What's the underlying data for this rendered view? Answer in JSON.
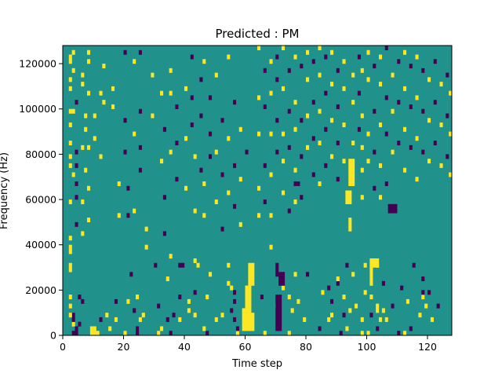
{
  "chart_data": {
    "type": "heatmap",
    "title": "Predicted : PM",
    "xlabel": "Time step",
    "ylabel": "Frequency (Hz)",
    "xlim": [
      0,
      128
    ],
    "ylim": [
      0,
      128000
    ],
    "x_ticks": [
      0,
      20,
      40,
      60,
      80,
      100,
      120
    ],
    "y_ticks": [
      0,
      20000,
      40000,
      60000,
      80000,
      100000,
      120000
    ],
    "y_tick_labels": [
      "0",
      "20000",
      "40000",
      "60000",
      "80000",
      "100000",
      "120000"
    ],
    "n_time_steps": 128,
    "n_freq_bins": 64,
    "freq_bin_width_hz": 2000,
    "background_value": 0,
    "colormap": {
      "-1": "#440154",
      "0": "#21918c",
      "1": "#fde725"
    },
    "cells": [
      {
        "t": 3,
        "f": 0,
        "v": -1
      },
      {
        "t": 4,
        "f": 0,
        "v": -1
      },
      {
        "t": 9,
        "f": 0,
        "v": 1
      },
      {
        "t": 10,
        "f": 0,
        "v": 1
      },
      {
        "t": 9,
        "f": 1,
        "v": 1
      },
      {
        "t": 10,
        "f": 1,
        "v": 1
      },
      {
        "t": 4,
        "f": 1,
        "v": -1
      },
      {
        "t": 11,
        "f": 0,
        "v": 1
      },
      {
        "t": 20,
        "f": 0,
        "v": 1
      },
      {
        "t": 24,
        "f": 0,
        "v": -1
      },
      {
        "t": 31,
        "f": 0,
        "v": 1
      },
      {
        "t": 24,
        "f": 1,
        "v": -1
      },
      {
        "t": 15,
        "f": 1,
        "v": 1
      },
      {
        "t": 35,
        "f": 0,
        "v": -1
      },
      {
        "t": 47,
        "f": 0,
        "v": -1
      },
      {
        "t": 57,
        "f": 0,
        "v": 1
      },
      {
        "t": 66,
        "f": 0,
        "v": 1
      },
      {
        "t": 74,
        "f": 0,
        "v": 1
      },
      {
        "t": 91,
        "f": 0,
        "v": -1
      },
      {
        "t": 98,
        "f": 0,
        "v": 1
      },
      {
        "t": 100,
        "f": 0,
        "v": 1
      },
      {
        "t": 110,
        "f": 0,
        "v": -1
      },
      {
        "t": 112,
        "f": 0,
        "v": 1
      },
      {
        "t": 3,
        "f": 2,
        "v": 1
      },
      {
        "t": 5,
        "f": 2,
        "v": -1
      },
      {
        "t": 3,
        "f": 3,
        "v": -1
      },
      {
        "t": 3,
        "f": 4,
        "v": -1
      },
      {
        "t": 2,
        "f": 4,
        "v": 1
      },
      {
        "t": 32,
        "f": 1,
        "v": 1
      },
      {
        "t": 46,
        "f": 1,
        "v": 1
      },
      {
        "t": 57,
        "f": 1,
        "v": -1
      },
      {
        "t": 84,
        "f": 1,
        "v": -1
      },
      {
        "t": 93,
        "f": 1,
        "v": 1
      },
      {
        "t": 103,
        "f": 1,
        "v": -1
      },
      {
        "t": 114,
        "f": 1,
        "v": -1
      },
      {
        "t": 12,
        "f": 3,
        "v": -1
      },
      {
        "t": 17,
        "f": 3,
        "v": 1
      },
      {
        "t": 25,
        "f": 3,
        "v": 1
      },
      {
        "t": 34,
        "f": 3,
        "v": -1
      },
      {
        "t": 38,
        "f": 3,
        "v": 1
      },
      {
        "t": 50,
        "f": 3,
        "v": 1
      },
      {
        "t": 56,
        "f": 3,
        "v": -1
      },
      {
        "t": 79,
        "f": 3,
        "v": 1
      },
      {
        "t": 87,
        "f": 3,
        "v": 1
      },
      {
        "t": 98,
        "f": 3,
        "v": 1
      },
      {
        "t": 104,
        "f": 3,
        "v": 1
      },
      {
        "t": 106,
        "f": 3,
        "v": 1
      },
      {
        "t": 121,
        "f": 3,
        "v": 1
      },
      {
        "t": 14,
        "f": 4,
        "v": 1
      },
      {
        "t": 26,
        "f": 4,
        "v": 1
      },
      {
        "t": 36,
        "f": 4,
        "v": -1
      },
      {
        "t": 43,
        "f": 4,
        "v": 1
      },
      {
        "t": 52,
        "f": 4,
        "v": 1
      },
      {
        "t": 88,
        "f": 4,
        "v": 1
      },
      {
        "t": 92,
        "f": 4,
        "v": -1
      },
      {
        "t": 101,
        "f": 4,
        "v": -1
      },
      {
        "t": 117,
        "f": 4,
        "v": 1
      },
      {
        "t": 23,
        "f": 5,
        "v": -1
      },
      {
        "t": 41,
        "f": 5,
        "v": 1
      },
      {
        "t": 55,
        "f": 5,
        "v": -1
      },
      {
        "t": 59,
        "f": 5,
        "v": 1
      },
      {
        "t": 75,
        "f": 5,
        "v": 1
      },
      {
        "t": 94,
        "f": 5,
        "v": 1
      },
      {
        "t": 105,
        "f": 5,
        "v": 1
      },
      {
        "t": 31,
        "f": 6,
        "v": -1
      },
      {
        "t": 70,
        "f": 6,
        "v": 1
      },
      {
        "t": 96,
        "f": 6,
        "v": 1
      },
      {
        "t": 108,
        "f": 6,
        "v": -1
      },
      {
        "t": 119,
        "f": 6,
        "v": 1
      },
      {
        "t": 123,
        "f": 6,
        "v": -1
      },
      {
        "t": 6,
        "f": 7,
        "v": -1
      },
      {
        "t": 17,
        "f": 7,
        "v": -1
      },
      {
        "t": 21,
        "f": 7,
        "v": 1
      },
      {
        "t": 41,
        "f": 7,
        "v": 1
      },
      {
        "t": 56,
        "f": 7,
        "v": -1
      },
      {
        "t": 77,
        "f": 7,
        "v": 1
      },
      {
        "t": 88,
        "f": 7,
        "v": -1
      },
      {
        "t": 113,
        "f": 7,
        "v": 1
      },
      {
        "t": 5,
        "f": 8,
        "v": -1
      },
      {
        "t": 24,
        "f": 8,
        "v": 1
      },
      {
        "t": 38,
        "f": 8,
        "v": -1
      },
      {
        "t": 47,
        "f": 8,
        "v": 1
      },
      {
        "t": 65,
        "f": 8,
        "v": -1
      },
      {
        "t": 74,
        "f": 8,
        "v": 1
      },
      {
        "t": 92,
        "f": 8,
        "v": 1
      },
      {
        "t": 101,
        "f": 8,
        "v": 1
      },
      {
        "t": 118,
        "f": 8,
        "v": 1
      },
      {
        "t": 43,
        "f": 9,
        "v": -1
      },
      {
        "t": 56,
        "f": 9,
        "v": -1
      },
      {
        "t": 60,
        "f": 9,
        "v": 1
      },
      {
        "t": 85,
        "f": 9,
        "v": 1
      },
      {
        "t": 99,
        "f": 9,
        "v": 1
      },
      {
        "t": 118,
        "f": 9,
        "v": -1
      },
      {
        "t": 120,
        "f": 9,
        "v": -1
      },
      {
        "t": 55,
        "f": 10,
        "v": 1
      },
      {
        "t": 60,
        "f": 10,
        "v": 1
      },
      {
        "t": 72,
        "f": 10,
        "v": 1
      },
      {
        "t": 87,
        "f": 10,
        "v": -1
      },
      {
        "t": 111,
        "f": 10,
        "v": -1
      },
      {
        "t": 54,
        "f": 11,
        "v": 1
      },
      {
        "t": 90,
        "f": 11,
        "v": -1
      },
      {
        "t": 105,
        "f": 11,
        "v": -1
      },
      {
        "t": 34,
        "f": 12,
        "v": 1
      },
      {
        "t": 90,
        "f": 12,
        "v": 1
      },
      {
        "t": 118,
        "f": 12,
        "v": -1
      },
      {
        "t": 22,
        "f": 13,
        "v": -1
      },
      {
        "t": 48,
        "f": 13,
        "v": 1
      },
      {
        "t": 76,
        "f": 13,
        "v": 1
      },
      {
        "t": 80,
        "f": 13,
        "v": -1
      },
      {
        "t": 95,
        "f": 13,
        "v": 1
      },
      {
        "t": 30,
        "f": 15,
        "v": -1
      },
      {
        "t": 44,
        "f": 15,
        "v": 1
      },
      {
        "t": 54,
        "f": 15,
        "v": 1
      },
      {
        "t": 93,
        "f": 15,
        "v": -1
      },
      {
        "t": 99,
        "f": 15,
        "v": 1
      },
      {
        "t": 103,
        "f": 15,
        "v": 1
      },
      {
        "t": 115,
        "f": 15,
        "v": -1
      }
    ],
    "rects": [
      {
        "t0": 59,
        "t1": 63,
        "f0": 1,
        "f1": 5,
        "v": 1
      },
      {
        "t0": 60,
        "t1": 62,
        "f0": 5,
        "f1": 11,
        "v": 1
      },
      {
        "t0": 61,
        "t1": 63,
        "f0": 11,
        "f1": 16,
        "v": 1
      },
      {
        "t0": 70,
        "t1": 72,
        "f0": 1,
        "f1": 9,
        "v": -1
      },
      {
        "t0": 71,
        "t1": 73,
        "f0": 11,
        "f1": 14,
        "v": -1
      },
      {
        "t0": 70,
        "t1": 71,
        "f0": 13,
        "f1": 16,
        "v": -1
      },
      {
        "t0": 94,
        "t1": 96,
        "f0": 33,
        "f1": 39,
        "v": 1
      },
      {
        "t0": 93,
        "t1": 95,
        "f0": 29,
        "f1": 32,
        "v": 1
      },
      {
        "t0": 94,
        "t1": 95,
        "f0": 23,
        "f1": 26,
        "v": 1
      },
      {
        "t0": 101,
        "t1": 104,
        "f0": 15,
        "f1": 17,
        "v": 1
      },
      {
        "t0": 101,
        "t1": 102,
        "f0": 11,
        "f1": 15,
        "v": 1
      },
      {
        "t0": 103,
        "t1": 104,
        "f0": 5,
        "f1": 7,
        "v": 1
      },
      {
        "t0": 38,
        "t1": 40,
        "f0": 15,
        "f1": 16,
        "v": -1
      },
      {
        "t0": 107,
        "t1": 110,
        "f0": 27,
        "f1": 29,
        "v": -1
      },
      {
        "t0": 76,
        "t1": 78,
        "f0": 33,
        "f1": 34,
        "v": -1
      }
    ],
    "streaks": [
      {
        "t": 2,
        "f": [
          49,
          54,
          42,
          39,
          37,
          19,
          14,
          8,
          21,
          29,
          18,
          6,
          15,
          56,
          61,
          60,
          46
        ],
        "v": 1
      },
      {
        "t": 3,
        "f": [
          58,
          49,
          62,
          35
        ],
        "v": 1
      },
      {
        "t": 4,
        "f": [
          51,
          40,
          37,
          33,
          30,
          24
        ],
        "v": -1
      },
      {
        "t": 6,
        "f": [
          57,
          55,
          41,
          29,
          22
        ],
        "v": 1
      },
      {
        "t": 7,
        "f": [
          48,
          45,
          36
        ],
        "v": 1
      },
      {
        "t": 8,
        "f": [
          62,
          60,
          53,
          41,
          32,
          25
        ],
        "v": 1
      },
      {
        "t": 10,
        "f": [
          43,
          48
        ],
        "v": 1
      },
      {
        "t": 12,
        "f": [
          39,
          53
        ],
        "v": 1
      },
      {
        "t": 13,
        "f": [
          59,
          51
        ],
        "v": 1
      },
      {
        "t": 16,
        "f": [
          54,
          50
        ],
        "v": 1
      },
      {
        "t": 18,
        "f": [
          33,
          26
        ],
        "v": 1
      },
      {
        "t": 20,
        "f": [
          62,
          47,
          40
        ],
        "v": -1
      },
      {
        "t": 21,
        "f": [
          32,
          26
        ],
        "v": -1
      },
      {
        "t": 23,
        "f": [
          60,
          44,
          27
        ],
        "v": 1
      },
      {
        "t": 25,
        "f": [
          62,
          49,
          41,
          36
        ],
        "v": -1
      },
      {
        "t": 27,
        "f": [
          23,
          19
        ],
        "v": 1
      },
      {
        "t": 29,
        "f": [
          57,
          48
        ],
        "v": 1
      },
      {
        "t": 32,
        "f": [
          53,
          38
        ],
        "v": 1
      },
      {
        "t": 33,
        "f": [
          45,
          30,
          22
        ],
        "v": -1
      },
      {
        "t": 35,
        "f": [
          58,
          53,
          40,
          17
        ],
        "v": 1
      },
      {
        "t": 37,
        "f": [
          50,
          42,
          34
        ],
        "v": -1
      },
      {
        "t": 40,
        "f": [
          54,
          43,
          32
        ],
        "v": 1
      },
      {
        "t": 42,
        "f": [
          61,
          52,
          46
        ],
        "v": -1
      },
      {
        "t": 43,
        "f": [
          39,
          27,
          16
        ],
        "v": 1
      },
      {
        "t": 45,
        "f": [
          56,
          48,
          36
        ],
        "v": -1
      },
      {
        "t": 46,
        "f": [
          60,
          33,
          26
        ],
        "v": 1
      },
      {
        "t": 48,
        "f": [
          52,
          44,
          39
        ],
        "v": -1
      },
      {
        "t": 50,
        "f": [
          57,
          40,
          29
        ],
        "v": 1
      },
      {
        "t": 52,
        "f": [
          47,
          35,
          23
        ],
        "v": -1
      },
      {
        "t": 54,
        "f": [
          61,
          43,
          31
        ],
        "v": 1
      },
      {
        "t": 56,
        "f": [
          51,
          37,
          28
        ],
        "v": -1
      },
      {
        "t": 58,
        "f": [
          45,
          34,
          24
        ],
        "v": 1
      },
      {
        "t": 60,
        "f": [
          40
        ],
        "v": -1
      },
      {
        "t": 64,
        "f": [
          63,
          52,
          44,
          32,
          26
        ],
        "v": 1
      },
      {
        "t": 66,
        "f": [
          58,
          50,
          37,
          29
        ],
        "v": -1
      },
      {
        "t": 68,
        "f": [
          60,
          53,
          44,
          35,
          26,
          19
        ],
        "v": 1
      },
      {
        "t": 70,
        "f": [
          61,
          56,
          47,
          40
        ],
        "v": -1
      },
      {
        "t": 72,
        "f": [
          63,
          54,
          44,
          38,
          31
        ],
        "v": 1
      },
      {
        "t": 74,
        "f": [
          58,
          49,
          41,
          27
        ],
        "v": -1
      },
      {
        "t": 76,
        "f": [
          61,
          51,
          45,
          36,
          29
        ],
        "v": 1
      },
      {
        "t": 78,
        "f": [
          59,
          47,
          39,
          30
        ],
        "v": -1
      },
      {
        "t": 80,
        "f": [
          62,
          56,
          48,
          41
        ],
        "v": 1
      },
      {
        "t": 82,
        "f": [
          60,
          51,
          43,
          35
        ],
        "v": -1
      },
      {
        "t": 84,
        "f": [
          63,
          57,
          49,
          42,
          33
        ],
        "v": 1
      },
      {
        "t": 86,
        "f": [
          61,
          53,
          45,
          37
        ],
        "v": -1
      },
      {
        "t": 88,
        "f": [
          62,
          55,
          47,
          39
        ],
        "v": 1
      },
      {
        "t": 90,
        "f": [
          58,
          50,
          42,
          34
        ],
        "v": -1
      },
      {
        "t": 92,
        "f": [
          60,
          54,
          46,
          38
        ],
        "v": 1
      },
      {
        "t": 95,
        "f": [
          57,
          51,
          42
        ],
        "v": 1
      },
      {
        "t": 97,
        "f": [
          61,
          53,
          45
        ],
        "v": -1
      },
      {
        "t": 98,
        "f": [
          58,
          48,
          41,
          36,
          30
        ],
        "v": 1
      },
      {
        "t": 100,
        "f": [
          62,
          56,
          44,
          38
        ],
        "v": 1
      },
      {
        "t": 102,
        "f": [
          59,
          49,
          40,
          32
        ],
        "v": -1
      },
      {
        "t": 104,
        "f": [
          61,
          55,
          46,
          37,
          30
        ],
        "v": 1
      },
      {
        "t": 106,
        "f": [
          63,
          52,
          44,
          33
        ],
        "v": -1
      },
      {
        "t": 108,
        "f": [
          57,
          49,
          40
        ],
        "v": 1
      },
      {
        "t": 110,
        "f": [
          60,
          51,
          42
        ],
        "v": -1
      },
      {
        "t": 112,
        "f": [
          62,
          54,
          45,
          36
        ],
        "v": 1
      },
      {
        "t": 114,
        "f": [
          59,
          50,
          41
        ],
        "v": -1
      },
      {
        "t": 116,
        "f": [
          61,
          52,
          43,
          34
        ],
        "v": 1
      },
      {
        "t": 118,
        "f": [
          58,
          49,
          40
        ],
        "v": -1
      },
      {
        "t": 120,
        "f": [
          56,
          47,
          38
        ],
        "v": 1
      },
      {
        "t": 122,
        "f": [
          60,
          51,
          42
        ],
        "v": -1
      },
      {
        "t": 124,
        "f": [
          55,
          46,
          37
        ],
        "v": 1
      },
      {
        "t": 126,
        "f": [
          57,
          48,
          39
        ],
        "v": -1
      },
      {
        "t": 127,
        "f": [
          53,
          44,
          35
        ],
        "v": 1
      }
    ]
  }
}
